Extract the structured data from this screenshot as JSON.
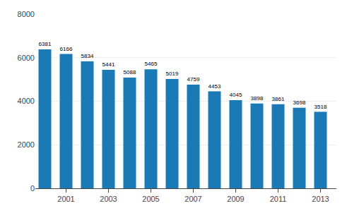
{
  "chart_data": {
    "type": "bar",
    "x": [
      2000,
      2001,
      2002,
      2003,
      2004,
      2005,
      2006,
      2007,
      2008,
      2009,
      2010,
      2011,
      2012,
      2013
    ],
    "values": [
      6381,
      6166,
      5834,
      5441,
      5088,
      5465,
      5019,
      4759,
      4453,
      4045,
      3898,
      3861,
      3698,
      3518
    ],
    "color": "#1a7ab5",
    "xlim": [
      1999.55,
      2013.75
    ],
    "xticks": [
      2001,
      2003,
      2005,
      2007,
      2009,
      2011,
      2013
    ],
    "ylim": [
      0,
      8000
    ],
    "yticks": [
      0,
      2000,
      4000,
      6000,
      8000
    ],
    "grid": true,
    "data_labels": true
  }
}
